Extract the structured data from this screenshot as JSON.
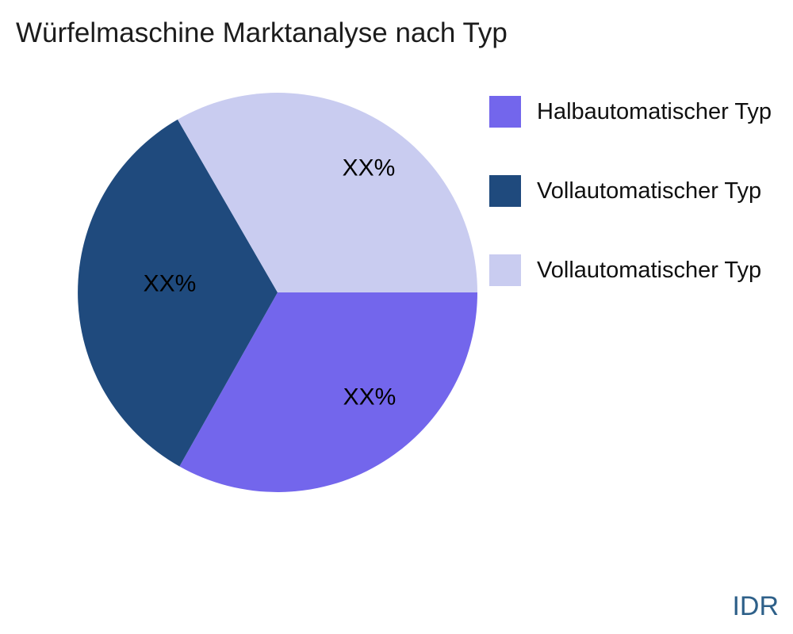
{
  "page": {
    "background_color": "#ffffff"
  },
  "header": {
    "title": "Würfelmaschine Marktanalyse nach Typ"
  },
  "watermark": {
    "text": "IDR",
    "color": "#2E6089"
  },
  "chart_data": {
    "type": "pie",
    "title": "Würfelmaschine Marktanalyse nach Typ",
    "values_masked": true,
    "legend_position": "right",
    "direction": "counterclockwise",
    "slices": [
      {
        "label": "Halbautomatischer Typ",
        "display_label": "XX%",
        "value": 33.2,
        "color": "#7366EC",
        "start_angle": 240.6,
        "end_angle": 360
      },
      {
        "label": "Vollautomatischer Typ",
        "display_label": "XX%",
        "value": 33.5,
        "color": "#1F4A7D",
        "start_angle": 120,
        "end_angle": 240.6
      },
      {
        "label": "Vollautomatischer Typ",
        "display_label": "XX%",
        "value": 33.3,
        "color": "#C9CCF0",
        "start_angle": 0,
        "end_angle": 120
      }
    ]
  }
}
